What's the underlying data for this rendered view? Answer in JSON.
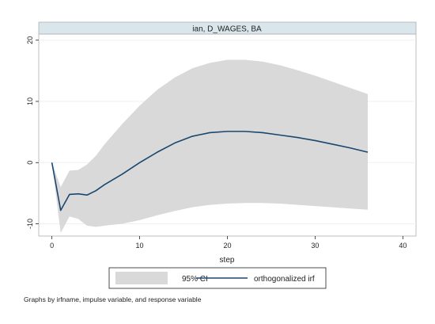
{
  "chart_data": {
    "type": "area",
    "panel_title": "ian, D_WAGES, BA",
    "xlabel": "step",
    "ylabel": "",
    "xlim": [
      0,
      40
    ],
    "ylim": [
      -12,
      21
    ],
    "x_ticks": [
      "0",
      "10",
      "20",
      "30",
      "40"
    ],
    "y_ticks": [
      "-10",
      "0",
      "10",
      "20"
    ],
    "x_tick_values": [
      0,
      10,
      20,
      30,
      40
    ],
    "y_tick_values": [
      -10,
      0,
      10,
      20
    ],
    "grid": true,
    "legend_position": "bottom",
    "legend": [
      "95% CI",
      "orthogonalized irf"
    ],
    "colors": {
      "ci_band": "#d9d9d9",
      "irf_line": "#1a476f",
      "panel_header": "#d9e6eb",
      "grid": "#eaf2f3"
    },
    "ci": {
      "x": [
        0,
        1,
        2,
        3,
        4,
        5,
        6,
        8,
        10,
        12,
        14,
        16,
        18,
        20,
        22,
        24,
        26,
        28,
        30,
        32,
        34,
        36
      ],
      "upper": [
        0,
        -4,
        -1.3,
        -1.2,
        -0.3,
        1.1,
        3,
        6.3,
        9.3,
        11.9,
        13.9,
        15.4,
        16.3,
        16.8,
        16.8,
        16.5,
        15.9,
        15.1,
        14.2,
        13.2,
        12.2,
        11.2
      ],
      "lower": [
        0,
        -11.5,
        -8.8,
        -9.2,
        -10.3,
        -10.5,
        -10.3,
        -10,
        -9.4,
        -8.6,
        -7.9,
        -7.3,
        -6.9,
        -6.7,
        -6.6,
        -6.6,
        -6.7,
        -6.9,
        -7.1,
        -7.3,
        -7.5,
        -7.7
      ]
    },
    "irf": {
      "x": [
        0,
        1,
        2,
        3,
        4,
        5,
        6,
        8,
        10,
        12,
        14,
        16,
        18,
        20,
        22,
        24,
        26,
        28,
        30,
        32,
        34,
        36
      ],
      "y": [
        0,
        -7.8,
        -5.2,
        -5.1,
        -5.3,
        -4.6,
        -3.6,
        -1.9,
        0,
        1.7,
        3.2,
        4.3,
        4.9,
        5.1,
        5.1,
        4.9,
        4.5,
        4.1,
        3.6,
        3.0,
        2.4,
        1.7
      ]
    }
  },
  "note": "Graphs by irfname, impulse variable, and response variable"
}
